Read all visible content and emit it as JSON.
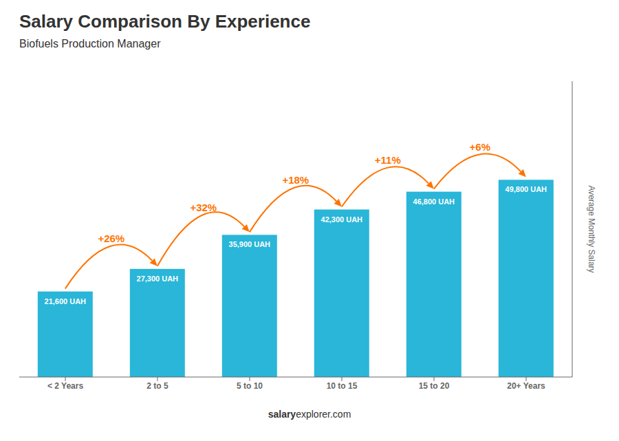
{
  "chart_data": {
    "type": "bar",
    "title": "Salary Comparison By Experience",
    "subtitle": "Biofuels Production Manager",
    "y_label": "Average Monthly Salary",
    "categories": [
      "< 2 Years",
      "2 to 5",
      "5 to 10",
      "10 to 15",
      "15 to 20",
      "20+ Years"
    ],
    "values": [
      21600,
      27300,
      35900,
      42300,
      46800,
      49800
    ],
    "value_labels": [
      "21,600 UAH",
      "27,300 UAH",
      "35,900 UAH",
      "42,300 UAH",
      "46,800 UAH",
      "49,800 UAH"
    ],
    "data_labels": true,
    "annotations": [
      "+26%",
      "+32%",
      "+18%",
      "+11%",
      "+6%"
    ],
    "footer": [
      "salary",
      "explorer.com"
    ],
    "color": "#29b6d8",
    "ylim": [
      0,
      74700
    ],
    "grid": false,
    "tick_labels": "x"
  }
}
